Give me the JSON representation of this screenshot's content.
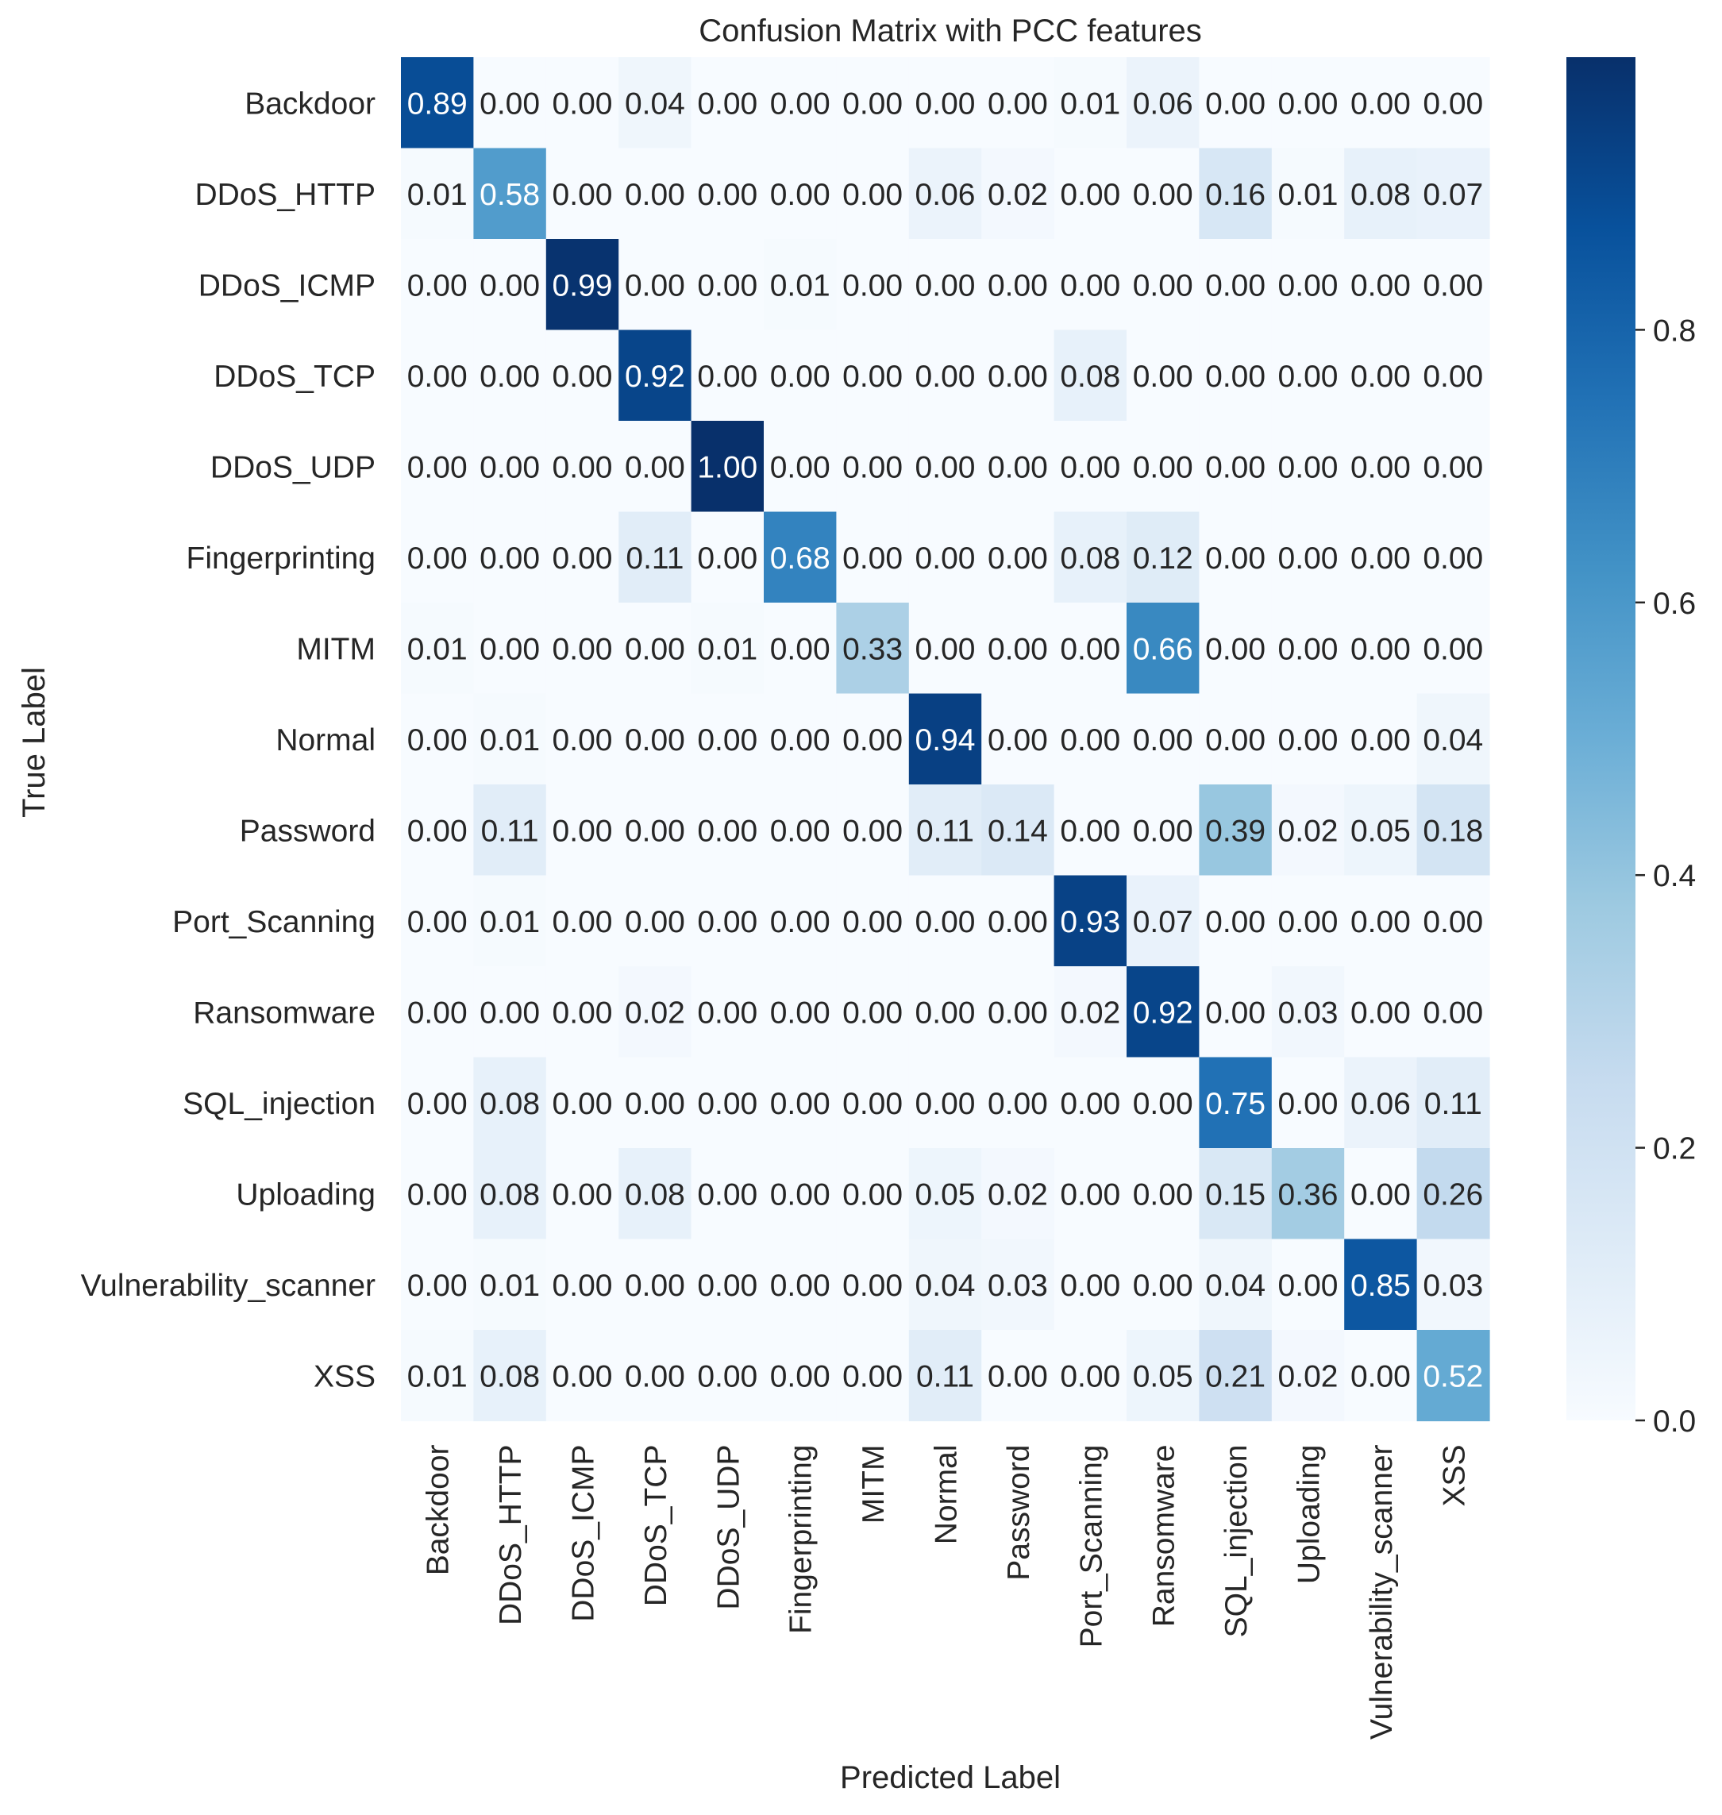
{
  "chart_data": {
    "type": "heatmap",
    "title": "Confusion Matrix with PCC features",
    "xlabel": "Predicted Label",
    "ylabel": "True Label",
    "categories": [
      "Backdoor",
      "DDoS_HTTP",
      "DDoS_ICMP",
      "DDoS_TCP",
      "DDoS_UDP",
      "Fingerprinting",
      "MITM",
      "Normal",
      "Password",
      "Port_Scanning",
      "Ransomware",
      "SQL_injection",
      "Uploading",
      "Vulnerability_scanner",
      "XSS"
    ],
    "matrix": [
      [
        0.89,
        0.0,
        0.0,
        0.04,
        0.0,
        0.0,
        0.0,
        0.0,
        0.0,
        0.01,
        0.06,
        0.0,
        0.0,
        0.0,
        0.0
      ],
      [
        0.01,
        0.58,
        0.0,
        0.0,
        0.0,
        0.0,
        0.0,
        0.06,
        0.02,
        0.0,
        0.0,
        0.16,
        0.01,
        0.08,
        0.07
      ],
      [
        0.0,
        0.0,
        0.99,
        0.0,
        0.0,
        0.01,
        0.0,
        0.0,
        0.0,
        0.0,
        0.0,
        0.0,
        0.0,
        0.0,
        0.0
      ],
      [
        0.0,
        0.0,
        0.0,
        0.92,
        0.0,
        0.0,
        0.0,
        0.0,
        0.0,
        0.08,
        0.0,
        0.0,
        0.0,
        0.0,
        0.0
      ],
      [
        0.0,
        0.0,
        0.0,
        0.0,
        1.0,
        0.0,
        0.0,
        0.0,
        0.0,
        0.0,
        0.0,
        0.0,
        0.0,
        0.0,
        0.0
      ],
      [
        0.0,
        0.0,
        0.0,
        0.11,
        0.0,
        0.68,
        0.0,
        0.0,
        0.0,
        0.08,
        0.12,
        0.0,
        0.0,
        0.0,
        0.0
      ],
      [
        0.01,
        0.0,
        0.0,
        0.0,
        0.01,
        0.0,
        0.33,
        0.0,
        0.0,
        0.0,
        0.66,
        0.0,
        0.0,
        0.0,
        0.0
      ],
      [
        0.0,
        0.01,
        0.0,
        0.0,
        0.0,
        0.0,
        0.0,
        0.94,
        0.0,
        0.0,
        0.0,
        0.0,
        0.0,
        0.0,
        0.04
      ],
      [
        0.0,
        0.11,
        0.0,
        0.0,
        0.0,
        0.0,
        0.0,
        0.11,
        0.14,
        0.0,
        0.0,
        0.39,
        0.02,
        0.05,
        0.18
      ],
      [
        0.0,
        0.01,
        0.0,
        0.0,
        0.0,
        0.0,
        0.0,
        0.0,
        0.0,
        0.93,
        0.07,
        0.0,
        0.0,
        0.0,
        0.0
      ],
      [
        0.0,
        0.0,
        0.0,
        0.02,
        0.0,
        0.0,
        0.0,
        0.0,
        0.0,
        0.02,
        0.92,
        0.0,
        0.03,
        0.0,
        0.0
      ],
      [
        0.0,
        0.08,
        0.0,
        0.0,
        0.0,
        0.0,
        0.0,
        0.0,
        0.0,
        0.0,
        0.0,
        0.75,
        0.0,
        0.06,
        0.11
      ],
      [
        0.0,
        0.08,
        0.0,
        0.08,
        0.0,
        0.0,
        0.0,
        0.05,
        0.02,
        0.0,
        0.0,
        0.15,
        0.36,
        0.0,
        0.26
      ],
      [
        0.0,
        0.01,
        0.0,
        0.0,
        0.0,
        0.0,
        0.0,
        0.04,
        0.03,
        0.0,
        0.0,
        0.04,
        0.0,
        0.85,
        0.03
      ],
      [
        0.01,
        0.08,
        0.0,
        0.0,
        0.0,
        0.0,
        0.0,
        0.11,
        0.0,
        0.0,
        0.05,
        0.21,
        0.02,
        0.0,
        0.52
      ]
    ],
    "colorbar": {
      "range": [
        0,
        1.0
      ],
      "ticks": [
        0.0,
        0.2,
        0.4,
        0.6,
        0.8
      ],
      "tick_labels": [
        "0.0",
        "0.2",
        "0.4",
        "0.6",
        "0.8"
      ],
      "colormap": "Blues"
    },
    "value_format": "0.00"
  }
}
